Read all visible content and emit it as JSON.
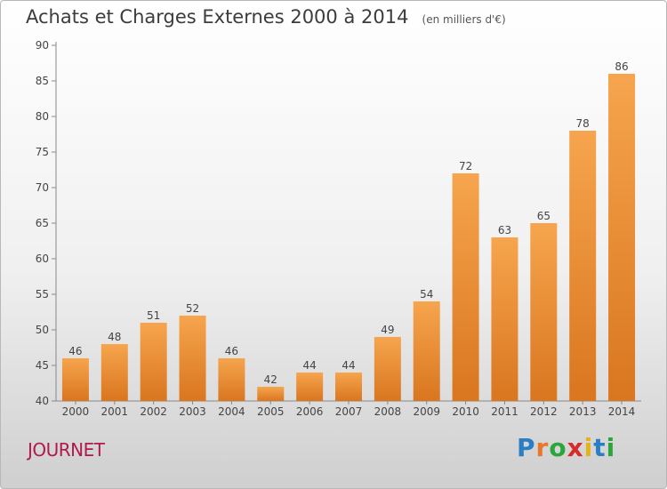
{
  "title": "Achats et Charges Externes 2000 à 2014",
  "subtitle": "(en milliers d'€)",
  "commune": "JOURNET",
  "brand": {
    "letters": [
      "P",
      "r",
      "o",
      "x",
      "i",
      "t",
      "i"
    ],
    "colors": [
      "#2a7fc4",
      "#e8762b",
      "#2aa63b",
      "#d62b2b",
      "#e6b219",
      "#2a7fc4",
      "#2aa63b"
    ]
  },
  "chart_data": {
    "type": "bar",
    "categories": [
      "2000",
      "2001",
      "2002",
      "2003",
      "2004",
      "2005",
      "2006",
      "2007",
      "2008",
      "2009",
      "2010",
      "2011",
      "2012",
      "2013",
      "2014"
    ],
    "values": [
      46,
      48,
      51,
      52,
      46,
      42,
      44,
      44,
      49,
      54,
      72,
      63,
      65,
      78,
      86
    ],
    "ylim": [
      40,
      90
    ],
    "yticks": [
      40,
      45,
      50,
      55,
      60,
      65,
      70,
      75,
      80,
      85,
      90
    ],
    "title": "Achats et Charges Externes 2000 à 2014",
    "ylabel": "",
    "xlabel": "",
    "grid": false,
    "colors": {
      "bar_light": "#f6a54e",
      "bar_dark": "#d9761f",
      "axis": "#888888",
      "text": "#444444"
    }
  }
}
